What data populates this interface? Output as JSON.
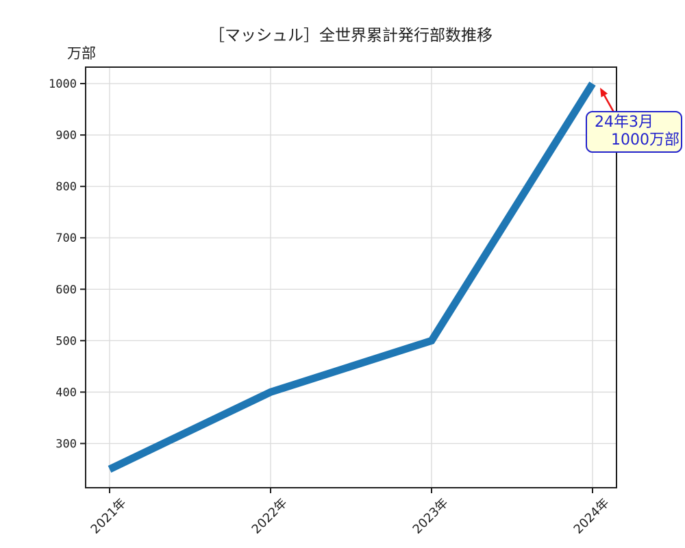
{
  "chart_data": {
    "type": "line",
    "title": "［マッシュル］全世界累計発行部数推移",
    "ylabel": "万部",
    "categories": [
      "2021年",
      "2022年",
      "2023年",
      "2024年"
    ],
    "values": [
      250,
      400,
      500,
      1000
    ],
    "yticks": [
      300,
      400,
      500,
      600,
      700,
      800,
      900,
      1000
    ],
    "ylim": [
      214,
      1032
    ],
    "grid": true,
    "legend": "none",
    "colors": {
      "line": "#1f77b4",
      "grid": "#dcdcdc",
      "axis": "#1f1f1f",
      "annotation_text": "#2222cc",
      "annotation_border": "#2222cc",
      "annotation_fill": "#ffffd9",
      "arrow": "#ed1717"
    },
    "line_width": 11,
    "annotation": {
      "line1": "24年3月",
      "line2": "1000万部"
    }
  }
}
